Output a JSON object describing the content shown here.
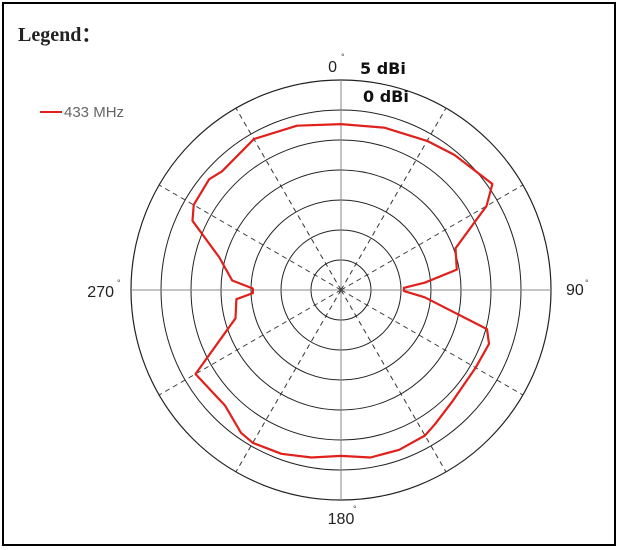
{
  "legend": {
    "title": "Legend：",
    "entries": [
      {
        "label": "433 MHz",
        "color": "#e0201b"
      }
    ]
  },
  "chart_data": {
    "type": "polar",
    "radial_labels": [
      "5 dBi",
      "0 dBi"
    ],
    "angle_ticks": [
      {
        "label": "0",
        "angle": 0
      },
      {
        "label": "90",
        "angle": 90
      },
      {
        "label": "180",
        "angle": 180
      },
      {
        "label": "270",
        "angle": 270
      }
    ],
    "degree_symbol": "°",
    "grid": true,
    "rings": 6,
    "spokes_deg": [
      0,
      30,
      60,
      90,
      120,
      150,
      180,
      210,
      240,
      270,
      300,
      330
    ],
    "series": [
      {
        "name": "433 MHz",
        "color": "#e0201b",
        "angles": [
          0,
          15,
          30,
          40,
          55,
          60,
          70,
          80,
          85,
          88,
          91,
          95,
          105,
          110,
          120,
          135,
          145,
          150,
          160,
          170,
          180,
          190,
          200,
          210,
          215,
          225,
          240,
          255,
          265,
          268,
          271,
          275,
          285,
          295,
          300,
          310,
          315,
          330,
          345,
          360
        ],
        "values": [
          0.79,
          0.8,
          0.82,
          0.84,
          0.88,
          0.8,
          0.58,
          0.56,
          0.4,
          0.3,
          0.3,
          0.4,
          0.72,
          0.75,
          0.74,
          0.75,
          0.78,
          0.8,
          0.81,
          0.81,
          0.79,
          0.81,
          0.83,
          0.84,
          0.83,
          0.78,
          0.8,
          0.52,
          0.5,
          0.42,
          0.42,
          0.52,
          0.6,
          0.78,
          0.81,
          0.82,
          0.8,
          0.83,
          0.81,
          0.79
        ]
      }
    ]
  }
}
